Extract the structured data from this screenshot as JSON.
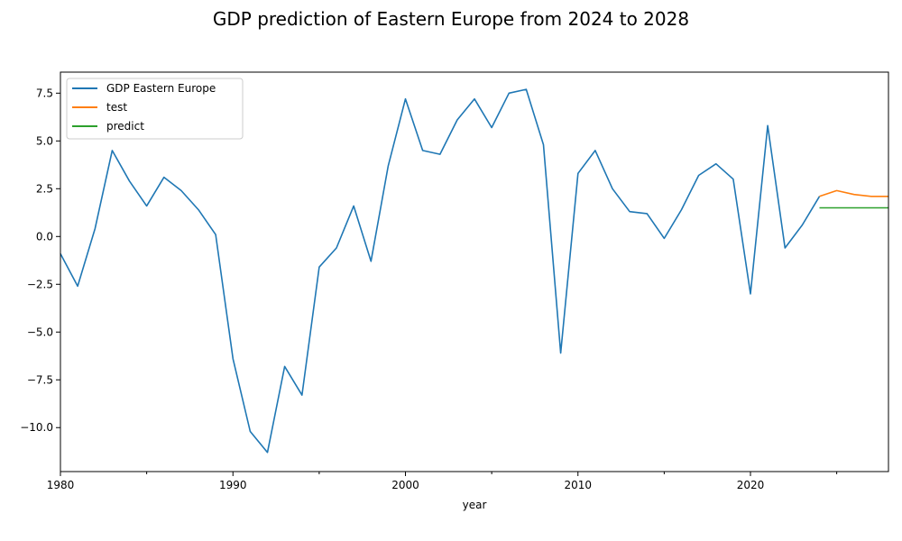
{
  "chart_data": {
    "type": "line",
    "title": "GDP prediction of Eastern Europe  from 2024 to 2028",
    "xlabel": "year",
    "ylabel": "",
    "xlim": [
      1980,
      2028
    ],
    "ylim": [
      -12.3,
      8.6
    ],
    "x_ticks": [
      1980,
      1990,
      2000,
      2010,
      2020
    ],
    "y_ticks": [
      7.5,
      5.0,
      2.5,
      0.0,
      -2.5,
      -5.0,
      -7.5,
      -10.0
    ],
    "grid": false,
    "legend_position": "top-left",
    "series": [
      {
        "name": "GDP Eastern Europe",
        "color": "#1f77b4",
        "x": [
          1980,
          1981,
          1982,
          1983,
          1984,
          1985,
          1986,
          1987,
          1988,
          1989,
          1990,
          1991,
          1992,
          1993,
          1994,
          1995,
          1996,
          1997,
          1998,
          1999,
          2000,
          2001,
          2002,
          2003,
          2004,
          2005,
          2006,
          2007,
          2008,
          2009,
          2010,
          2011,
          2012,
          2013,
          2014,
          2015,
          2016,
          2017,
          2018,
          2019,
          2020,
          2021,
          2022,
          2023,
          2024
        ],
        "values": [
          -0.9,
          -2.6,
          0.4,
          4.5,
          2.9,
          1.6,
          3.1,
          2.4,
          1.4,
          0.1,
          -6.4,
          -10.2,
          -11.3,
          -6.8,
          -8.3,
          -1.6,
          -0.6,
          1.6,
          -1.3,
          3.7,
          7.2,
          4.5,
          4.3,
          6.1,
          7.2,
          5.7,
          7.5,
          7.7,
          4.8,
          -6.1,
          3.3,
          4.5,
          2.5,
          1.3,
          1.2,
          -0.1,
          1.4,
          3.2,
          3.8,
          3.0,
          -3.0,
          5.8,
          -0.6,
          0.6,
          2.1
        ]
      },
      {
        "name": "test",
        "color": "#ff7f0e",
        "x": [
          2024,
          2025,
          2026,
          2027,
          2028
        ],
        "values": [
          2.1,
          2.4,
          2.2,
          2.1,
          2.1
        ]
      },
      {
        "name": "predict",
        "color": "#2ca02c",
        "x": [
          2024,
          2025,
          2026,
          2027,
          2028
        ],
        "values": [
          1.5,
          1.5,
          1.5,
          1.5,
          1.5
        ]
      }
    ]
  }
}
